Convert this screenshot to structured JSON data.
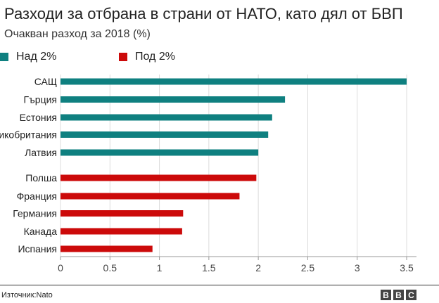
{
  "title": "Разходи за отбрана в страни от НАТО, като дял от БВП",
  "subtitle": "Очакван разход за 2018 (%)",
  "source": "Източник:Nato",
  "logo": [
    "B",
    "B",
    "C"
  ],
  "legend": [
    {
      "label": "Над 2%",
      "color": "#0f8080"
    },
    {
      "label": "Под 2%",
      "color": "#cc0a0a"
    }
  ],
  "chart_data": {
    "type": "bar",
    "orientation": "horizontal",
    "title": "Разходи за отбрана в страни от НАТО, като дял от БВП",
    "subtitle": "Очакван разход за 2018 (%)",
    "xlim": [
      0,
      3.5
    ],
    "xticks": [
      0,
      0.5,
      1,
      1.5,
      2,
      2.5,
      3,
      3.5
    ],
    "xtick_labels": [
      "0",
      "0.5",
      "1",
      "1.5",
      "2",
      "2.5",
      "3",
      "3.5"
    ],
    "grid": true,
    "legend_position": "top-left",
    "series": [
      {
        "name": "Над 2%",
        "color": "#0f8080",
        "categories": [
          "САЩ",
          "Гърция",
          "Естония",
          "Великобритания",
          "Латвия"
        ],
        "values": [
          3.5,
          2.27,
          2.14,
          2.1,
          2.0
        ]
      },
      {
        "name": "Под 2%",
        "color": "#cc0a0a",
        "categories": [
          "Полша",
          "Франция",
          "Германия",
          "Канада",
          "Испания"
        ],
        "values": [
          1.98,
          1.81,
          1.24,
          1.23,
          0.93
        ]
      }
    ]
  }
}
